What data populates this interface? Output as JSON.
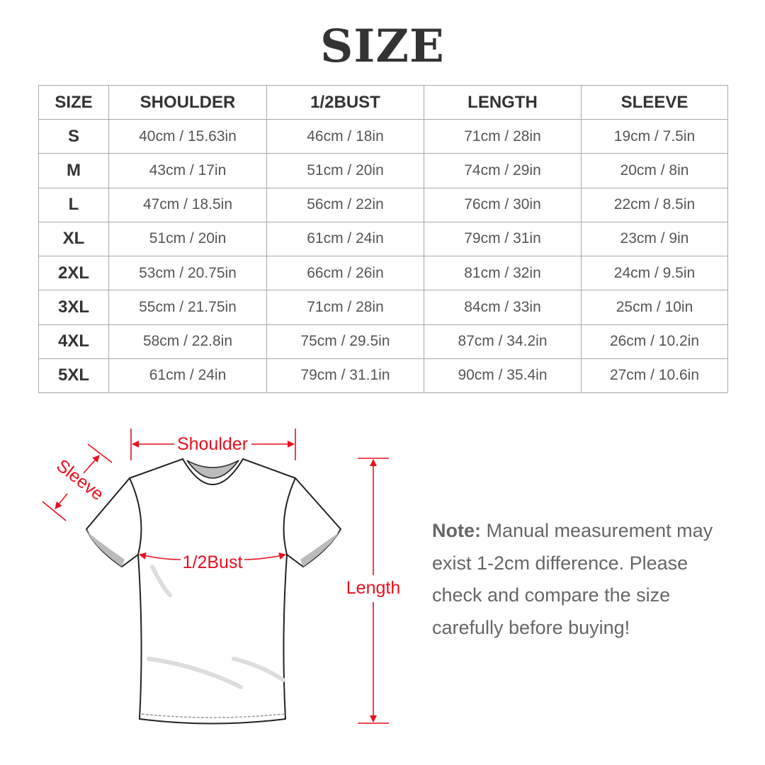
{
  "title": "SIZE",
  "table": {
    "headers": [
      "SIZE",
      "SHOULDER",
      "1/2BUST",
      "LENGTH",
      "SLEEVE"
    ],
    "rows": [
      [
        "S",
        "40cm / 15.63in",
        "46cm / 18in",
        "71cm / 28in",
        "19cm / 7.5in"
      ],
      [
        "M",
        "43cm / 17in",
        "51cm / 20in",
        "74cm / 29in",
        "20cm / 8in"
      ],
      [
        "L",
        "47cm / 18.5in",
        "56cm / 22in",
        "76cm / 30in",
        "22cm / 8.5in"
      ],
      [
        "XL",
        "51cm / 20in",
        "61cm / 24in",
        "79cm / 31in",
        "23cm / 9in"
      ],
      [
        "2XL",
        "53cm / 20.75in",
        "66cm / 26in",
        "81cm / 32in",
        "24cm / 9.5in"
      ],
      [
        "3XL",
        "55cm / 21.75in",
        "71cm / 28in",
        "84cm / 33in",
        "25cm / 10in"
      ],
      [
        "4XL",
        "58cm / 22.8in",
        "75cm / 29.5in",
        "87cm / 34.2in",
        "26cm / 10.2in"
      ],
      [
        "5XL",
        "61cm / 24in",
        "79cm / 31.1in",
        "90cm / 35.4in",
        "27cm / 10.6in"
      ]
    ]
  },
  "diagram": {
    "shoulder_label": "Shoulder",
    "sleeve_label": "Sleeve",
    "bust_label": "1/2Bust",
    "length_label": "Length",
    "annotation_color": "#e8101e"
  },
  "note": {
    "label": "Note:",
    "text": " Manual measurement may exist 1-2cm difference. Please check and compare the size carefully before buying!"
  }
}
